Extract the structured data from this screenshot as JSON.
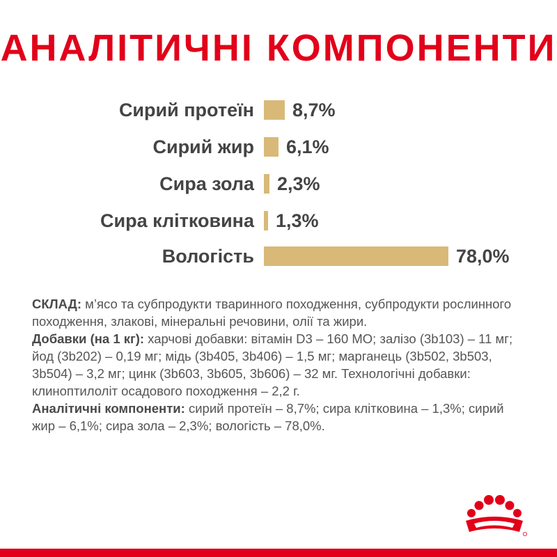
{
  "title": "АНАЛІТИЧНІ КОМПОНЕНТИ",
  "chart_data": {
    "type": "bar",
    "orientation": "horizontal",
    "categories": [
      "Сирий протеїн",
      "Сирий жир",
      "Сира зола",
      "Сира клітковина",
      "Вологість"
    ],
    "values": [
      8.7,
      6.1,
      2.3,
      1.3,
      78.0
    ],
    "value_labels": [
      "8,7%",
      "6,1%",
      "2,3%",
      "1,3%",
      "78,0%"
    ],
    "unit": "%",
    "bar_color": "#d9b978",
    "grid": false,
    "legend": "none"
  },
  "composition": {
    "sklad_label": "СКЛАД:",
    "sklad_text": " м’ясо та субпродукти тваринного походження, субпродукти рослинного походження, злакові, мінеральні речовини, олії та жири.",
    "additives_label": "Добавки (на 1 кг):",
    "additives_text": " харчові добавки: вітамін D3 – 160 МО; залізо (3b103) – 11 мг; йод (3b202) – 0,19 мг; мідь (3b405, 3b406) – 1,5 мг; марганець (3b502, 3b503, 3b504) – 3,2 мг; цинк (3b603, 3b605, 3b606) – 32 мг. Технологічні добавки: клиноптилоліт осадового походження – 2,2 г.",
    "analytical_label": "Аналітичні компоненти:",
    "analytical_text": " сирий протеїн – 8,7%; сира клітковина – 1,3%; сирий жир – 6,1%; сира зола – 2,3%; вологість – 78,0%."
  },
  "brand": {
    "logo_icon": "royal-canin-crown-icon",
    "primary_color": "#e2001a",
    "text_color": "#444444"
  }
}
